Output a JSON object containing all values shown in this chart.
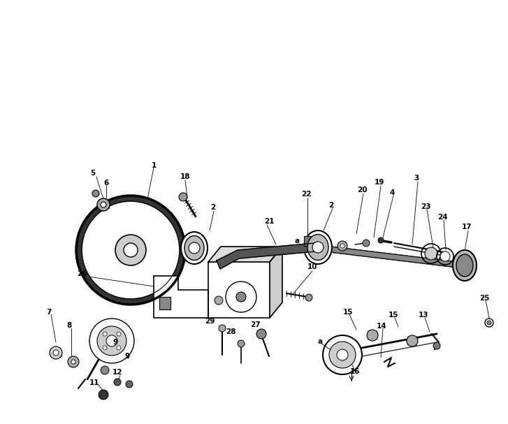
{
  "bg_color": "#ffffff",
  "fig_width": 7.27,
  "fig_height": 6.07,
  "dpi": 100
}
